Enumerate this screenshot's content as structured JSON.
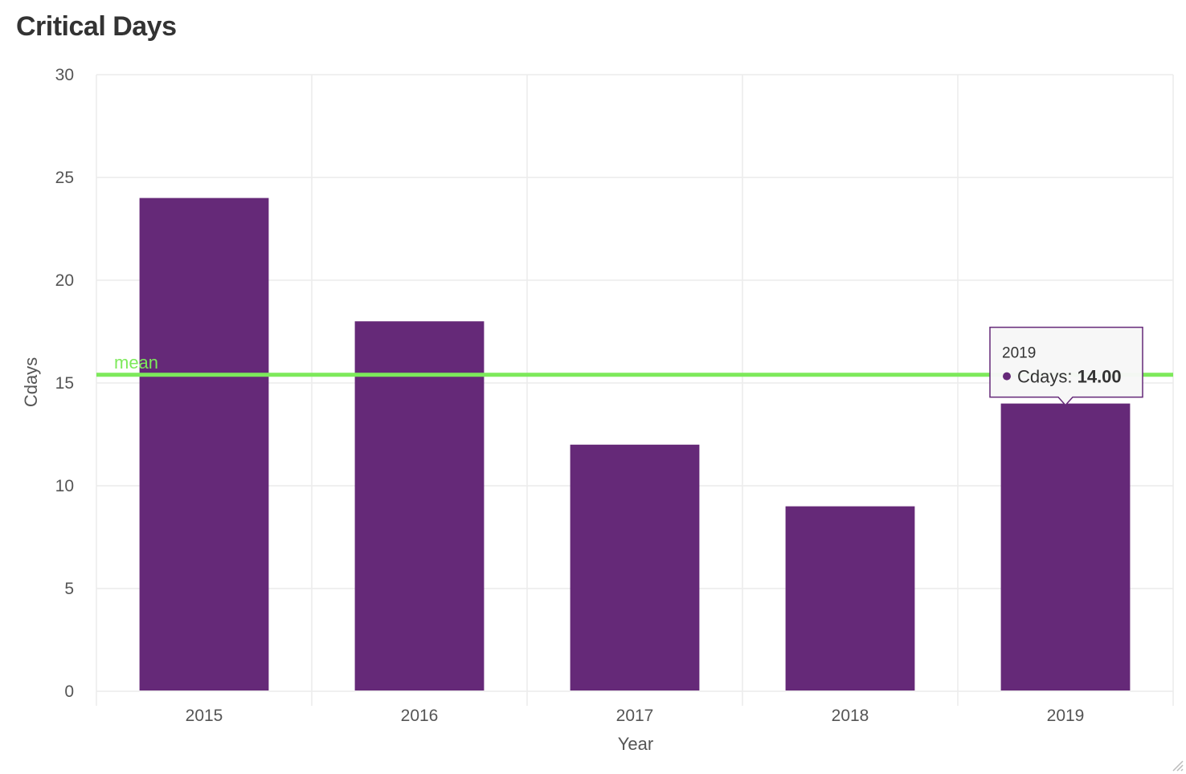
{
  "chart_data": {
    "type": "bar",
    "title": "Critical Days",
    "xlabel": "Year",
    "ylabel": "Cdays",
    "categories": [
      "2015",
      "2016",
      "2017",
      "2018",
      "2019"
    ],
    "series": [
      {
        "name": "Cdays",
        "values": [
          24,
          18,
          12,
          9,
          14
        ],
        "color": "#652978"
      }
    ],
    "ylim": [
      0,
      30
    ],
    "yticks": [
      0,
      5,
      10,
      15,
      20,
      25,
      30
    ],
    "grid": true,
    "reference_line": {
      "label": "mean",
      "value": 15.4,
      "color": "#7de95b"
    },
    "tooltip": {
      "category": "2019",
      "series": "Cdays",
      "value_text": "14.00"
    }
  }
}
